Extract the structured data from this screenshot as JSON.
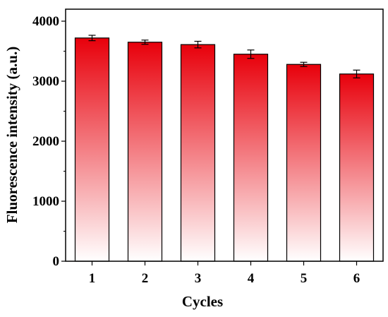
{
  "chart_data": {
    "type": "bar",
    "xlabel": "Cycles",
    "ylabel": "Fluorescence intensity (a.u.)",
    "categories": [
      "1",
      "2",
      "3",
      "4",
      "5",
      "6"
    ],
    "values": [
      3720,
      3650,
      3610,
      3450,
      3280,
      3120
    ],
    "errors": [
      45,
      35,
      55,
      70,
      35,
      65
    ],
    "ylim": [
      0,
      4200
    ],
    "yticks": [
      0,
      1000,
      2000,
      3000,
      4000
    ],
    "grid": false,
    "legend": "none",
    "bar_color_top": "#e8000b",
    "bar_color_bottom": "#ffffff",
    "outline_color": "#000000"
  }
}
